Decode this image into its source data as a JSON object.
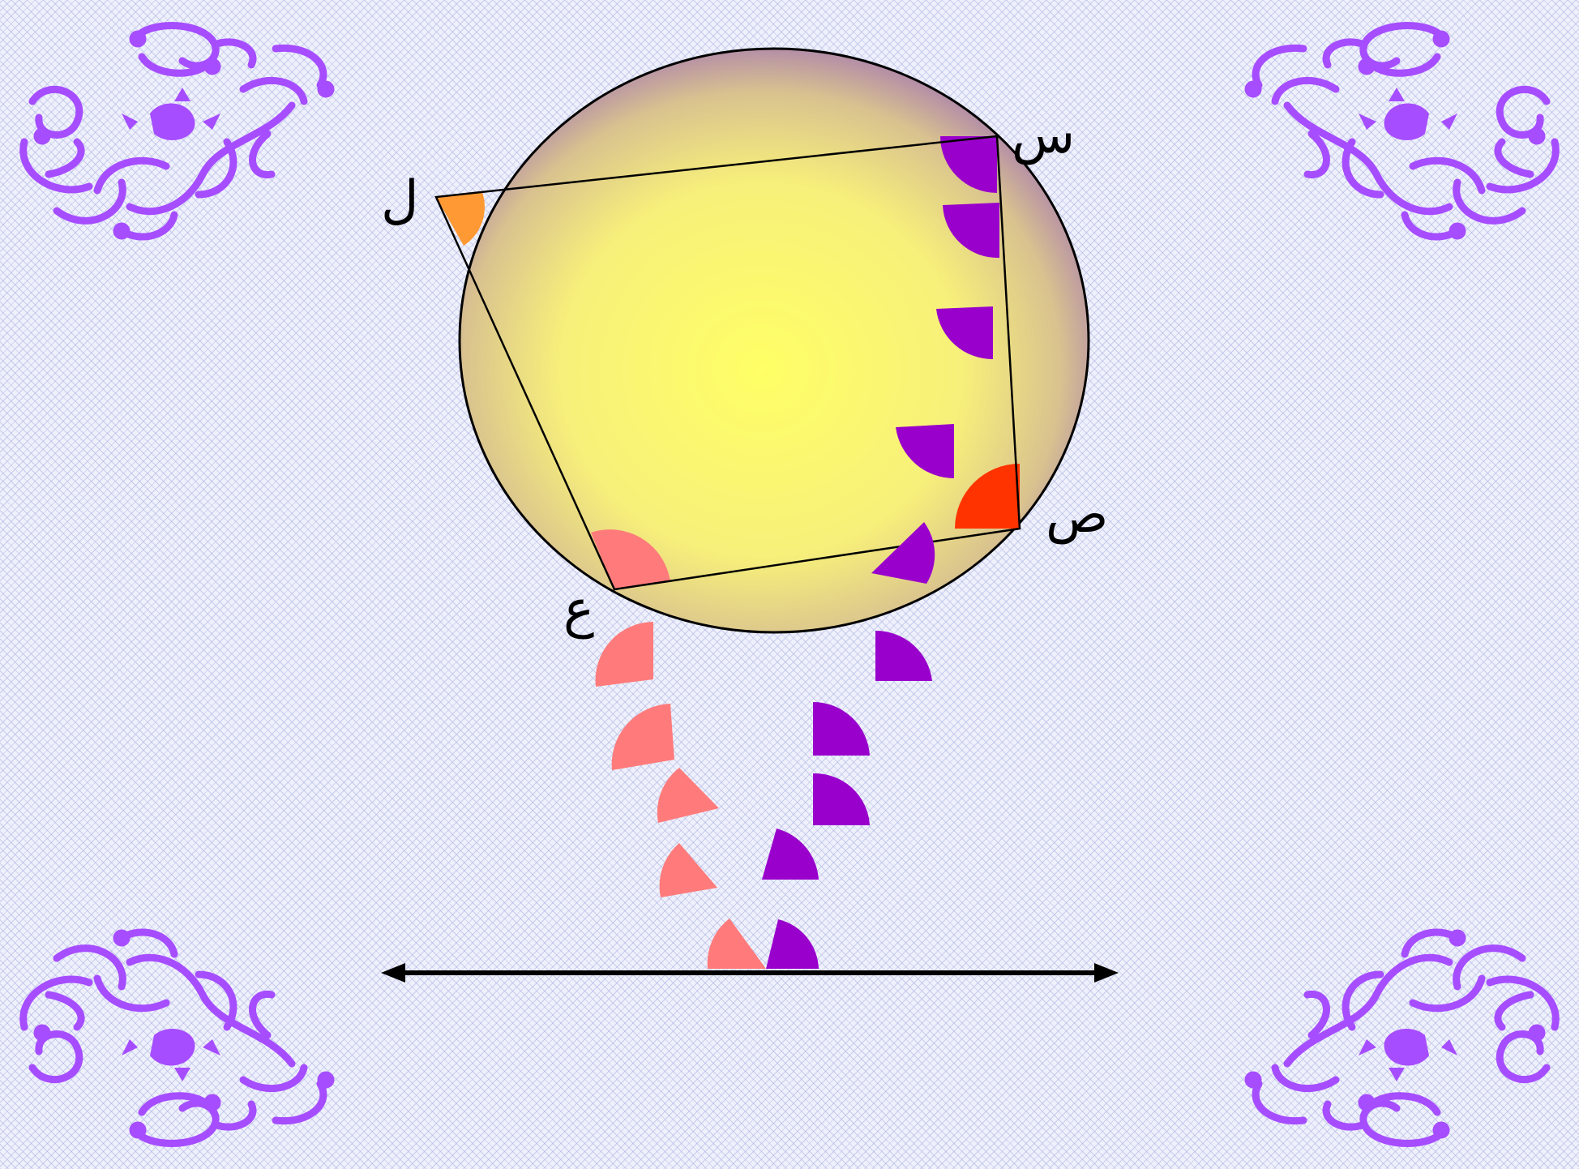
{
  "labels": {
    "seen": "س",
    "sad": "ص",
    "ain": "ع",
    "lam": "ل"
  },
  "colors": {
    "purple_wedge": "#9900cc",
    "pink_wedge": "#ff7b7b",
    "red_wedge": "#ff3300",
    "orange_wedge": "#ff9933",
    "ornament": "#a64dff",
    "circle_center": "#ffff66",
    "circle_edge": "#a67bb0",
    "line": "#000000"
  },
  "icons": [
    "ornament-corner-icon",
    "double-arrow-line-icon"
  ]
}
